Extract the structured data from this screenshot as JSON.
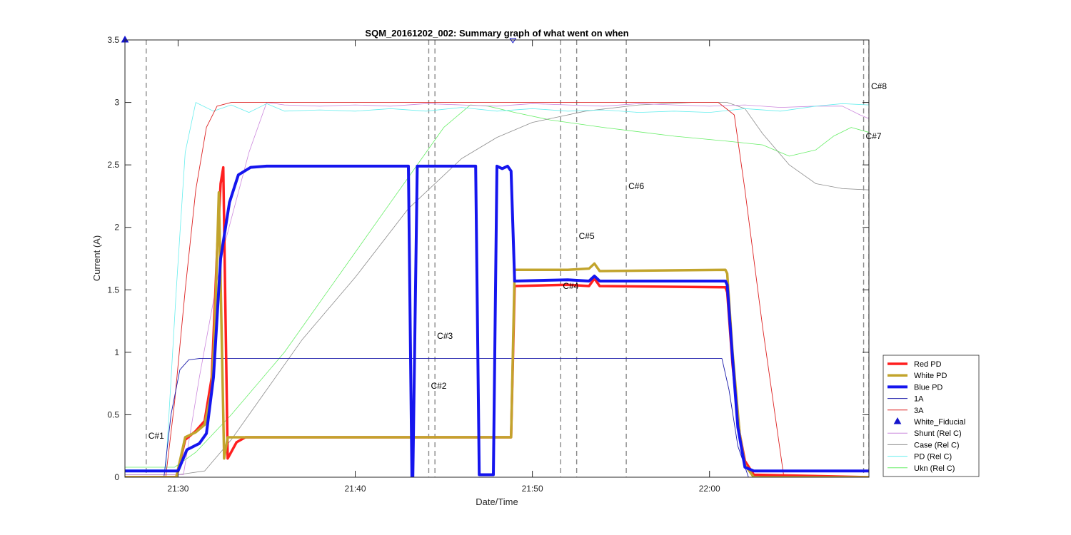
{
  "chart_data": {
    "type": "line",
    "title": "SQM_20161202_002: Summary graph of what went on when",
    "xlabel": "Date/Time",
    "ylabel": "Current (A)",
    "x_unit": "time of day (HH:MM)",
    "xlim": [
      "21:27:00",
      "21:69:00"
    ],
    "xlim_minutes": [
      27,
      69
    ],
    "ylim": [
      0,
      3.5
    ],
    "x_ticks": [
      {
        "value": 30,
        "label": "21:30"
      },
      {
        "value": 40,
        "label": "21:40"
      },
      {
        "value": 50,
        "label": "21:50"
      },
      {
        "value": 60,
        "label": "22:00"
      }
    ],
    "y_ticks": [
      {
        "value": 0,
        "label": "0"
      },
      {
        "value": 0.5,
        "label": "0.5"
      },
      {
        "value": 1,
        "label": "1"
      },
      {
        "value": 1.5,
        "label": "1.5"
      },
      {
        "value": 2,
        "label": "2"
      },
      {
        "value": 2.5,
        "label": "2.5"
      },
      {
        "value": 3,
        "label": "3"
      },
      {
        "value": 3.5,
        "label": "3.5"
      }
    ],
    "grid": false,
    "legend_placement": "outside-bottom-right",
    "series": [
      {
        "name": "Ukn (Rel C)",
        "color": "#66ee66",
        "width": 0.8,
        "x": [
          27.0,
          29.0,
          29.8,
          31.0,
          33.0,
          36.0,
          39.0,
          42.0,
          45.0,
          46.5,
          47.5,
          49.0,
          51.0,
          54.0,
          58.0,
          61.0,
          63.0,
          64.5,
          66.0,
          67.0,
          68.0,
          69.0
        ],
        "y": [
          0.08,
          0.08,
          0.08,
          0.2,
          0.5,
          1.0,
          1.6,
          2.2,
          2.8,
          2.98,
          2.97,
          2.92,
          2.86,
          2.8,
          2.73,
          2.69,
          2.66,
          2.57,
          2.62,
          2.73,
          2.8,
          2.76
        ]
      },
      {
        "name": "Case (Rel C)",
        "color": "#8c8c8c",
        "width": 0.8,
        "x": [
          27.0,
          30.0,
          31.5,
          33.0,
          35.0,
          37.0,
          40.0,
          43.0,
          46.0,
          48.0,
          50.0,
          53.0,
          56.0,
          59.0,
          61.0,
          62.0,
          63.0,
          64.5,
          66.0,
          67.5,
          69.0
        ],
        "y": [
          0.02,
          0.02,
          0.05,
          0.3,
          0.7,
          1.1,
          1.6,
          2.15,
          2.55,
          2.72,
          2.84,
          2.93,
          2.98,
          3.0,
          3.0,
          2.95,
          2.75,
          2.5,
          2.35,
          2.31,
          2.3
        ]
      },
      {
        "name": "Shunt (Rel C)",
        "color": "#cc88dd",
        "width": 0.8,
        "x": [
          27.0,
          30.3,
          31.2,
          32.5,
          34.0,
          35.0,
          36.0,
          38.0,
          40.0,
          42.0,
          44.0,
          46.0,
          48.0,
          50.0,
          52.0,
          54.0,
          56.0,
          58.0,
          60.0,
          62.0,
          64.0,
          66.0,
          67.5,
          68.5,
          69.0
        ],
        "y": [
          0.02,
          0.02,
          0.8,
          1.8,
          2.6,
          3.0,
          2.98,
          2.97,
          2.98,
          2.97,
          2.99,
          2.98,
          2.97,
          2.99,
          2.98,
          2.97,
          2.99,
          2.98,
          2.97,
          2.98,
          2.96,
          2.97,
          2.97,
          2.9,
          2.87
        ]
      },
      {
        "name": "PD (Rel C)",
        "color": "#66eeee",
        "width": 0.8,
        "x": [
          27.0,
          29.3,
          29.9,
          30.4,
          31.0,
          32.0,
          33.0,
          34.0,
          35.0,
          36.0,
          38.0,
          40.0,
          42.0,
          44.0,
          46.0,
          48.0,
          50.0,
          52.0,
          54.0,
          56.0,
          58.0,
          60.0,
          62.0,
          64.0,
          66.0,
          67.5,
          69.0
        ],
        "y": [
          0.06,
          0.06,
          1.5,
          2.6,
          3.0,
          2.93,
          2.98,
          2.92,
          2.99,
          2.93,
          2.94,
          2.93,
          2.95,
          2.93,
          2.96,
          2.93,
          2.95,
          2.93,
          2.94,
          2.92,
          2.93,
          2.92,
          2.95,
          2.93,
          2.97,
          2.99,
          2.98
        ]
      },
      {
        "name": "3A",
        "color": "#dd2222",
        "width": 0.9,
        "x": [
          27.0,
          29.3,
          29.8,
          30.4,
          31.0,
          31.6,
          32.2,
          33.0,
          36.0,
          45.0,
          55.0,
          60.5,
          61.4,
          62.0,
          63.0,
          64.2,
          69.0
        ],
        "y": [
          0.0,
          0.0,
          0.6,
          1.5,
          2.3,
          2.8,
          2.97,
          3.0,
          3.0,
          3.0,
          3.0,
          3.0,
          2.9,
          2.3,
          1.2,
          0.0,
          0.0
        ]
      },
      {
        "name": "1A",
        "color": "#1a1aaa",
        "width": 0.9,
        "x": [
          27.0,
          29.2,
          29.6,
          30.1,
          30.6,
          31.2,
          60.7,
          61.1,
          61.6,
          62.2,
          69.0
        ],
        "y": [
          0.0,
          0.0,
          0.5,
          0.86,
          0.94,
          0.95,
          0.95,
          0.7,
          0.25,
          0.0,
          0.0
        ]
      },
      {
        "name": "Red PD",
        "color": "#ff1f1f",
        "width": 3.5,
        "x": [
          27.0,
          29.9,
          30.4,
          31.0,
          31.5,
          31.9,
          32.2,
          32.4,
          32.55,
          32.8,
          33.3,
          33.8,
          48.8,
          49.0,
          52.0,
          53.2,
          53.5,
          53.8,
          60.9,
          61.0,
          61.3,
          61.7,
          62.0,
          62.5,
          69.0
        ],
        "y": [
          0.0,
          0.0,
          0.3,
          0.37,
          0.45,
          0.8,
          1.8,
          2.35,
          2.48,
          0.15,
          0.28,
          0.32,
          0.32,
          1.53,
          1.54,
          1.53,
          1.59,
          1.53,
          1.52,
          1.48,
          0.9,
          0.35,
          0.13,
          0.02,
          0.0
        ]
      },
      {
        "name": "White PD",
        "color": "#c2a42c",
        "width": 3.5,
        "x": [
          27.0,
          29.9,
          30.4,
          31.0,
          31.5,
          31.9,
          32.1,
          32.3,
          32.6,
          32.8,
          48.8,
          49.0,
          52.0,
          53.2,
          53.5,
          53.8,
          60.9,
          61.0,
          61.3,
          61.7,
          62.0,
          62.5,
          69.0
        ],
        "y": [
          0.0,
          0.0,
          0.32,
          0.36,
          0.42,
          0.7,
          1.3,
          2.28,
          0.15,
          0.32,
          0.32,
          1.66,
          1.66,
          1.67,
          1.71,
          1.65,
          1.66,
          1.63,
          1.0,
          0.35,
          0.1,
          0.0,
          0.0
        ]
      },
      {
        "name": "Blue PD",
        "color": "#1515ee",
        "width": 4.0,
        "x": [
          27.0,
          29.6,
          30.0,
          30.5,
          31.2,
          31.6,
          32.0,
          32.4,
          32.9,
          33.4,
          34.1,
          35.0,
          37.0,
          40.0,
          43.0,
          43.2,
          43.25,
          43.5,
          44.0,
          46.8,
          47.0,
          47.2,
          47.8,
          48.0,
          48.3,
          48.6,
          48.8,
          49.0,
          52.0,
          53.2,
          53.5,
          53.8,
          60.9,
          61.0,
          61.3,
          61.6,
          62.0,
          62.5,
          69.0
        ],
        "y": [
          0.05,
          0.05,
          0.05,
          0.22,
          0.27,
          0.35,
          0.8,
          1.75,
          2.2,
          2.42,
          2.48,
          2.49,
          2.49,
          2.49,
          2.49,
          0.0,
          0.0,
          2.49,
          2.49,
          2.49,
          0.02,
          0.02,
          0.02,
          2.49,
          2.47,
          2.49,
          2.45,
          1.57,
          1.58,
          1.57,
          1.61,
          1.57,
          1.57,
          1.54,
          0.95,
          0.4,
          0.08,
          0.05,
          0.05
        ]
      }
    ],
    "fiducials": {
      "name": "White_Fiducial",
      "color": "#1515cc",
      "points": [
        {
          "x": 27.0,
          "y": 3.5,
          "marker": "triangle-filled"
        },
        {
          "x": 48.9,
          "y": 3.5,
          "marker": "triangle-open-down"
        }
      ]
    },
    "cursors": [
      {
        "label": "C#1",
        "x": 28.2,
        "label_y": 0.33
      },
      {
        "label": "C#2",
        "x": 44.15,
        "label_y": 0.73
      },
      {
        "label": "C#3",
        "x": 44.5,
        "label_y": 1.13
      },
      {
        "label": "C#4",
        "x": 51.6,
        "label_y": 1.53
      },
      {
        "label": "C#5",
        "x": 52.5,
        "label_y": 1.93
      },
      {
        "label": "C#6",
        "x": 55.3,
        "label_y": 2.33
      },
      {
        "label": "C#7",
        "x": 68.7,
        "label_y": 2.73
      },
      {
        "label": "C#8",
        "x": 69.0,
        "label_y": 3.13
      }
    ],
    "legend": [
      {
        "label": "Red PD",
        "color": "#ff1f1f",
        "kind": "line",
        "width": 3.5
      },
      {
        "label": "White PD",
        "color": "#c2a42c",
        "kind": "line",
        "width": 3.5
      },
      {
        "label": "Blue PD",
        "color": "#1515ee",
        "kind": "line",
        "width": 4
      },
      {
        "label": "1A",
        "color": "#1a1aaa",
        "kind": "line",
        "width": 1
      },
      {
        "label": "3A",
        "color": "#dd2222",
        "kind": "line",
        "width": 1
      },
      {
        "label": "White_Fiducial",
        "color": "#1515cc",
        "kind": "marker",
        "width": 1
      },
      {
        "label": "Shunt (Rel C)",
        "color": "#cc88dd",
        "kind": "line",
        "width": 1
      },
      {
        "label": "Case (Rel C)",
        "color": "#8c8c8c",
        "kind": "line",
        "width": 1
      },
      {
        "label": "PD (Rel C)",
        "color": "#66eeee",
        "kind": "line",
        "width": 1
      },
      {
        "label": "Ukn (Rel C)",
        "color": "#66ee66",
        "kind": "line",
        "width": 1
      }
    ]
  }
}
